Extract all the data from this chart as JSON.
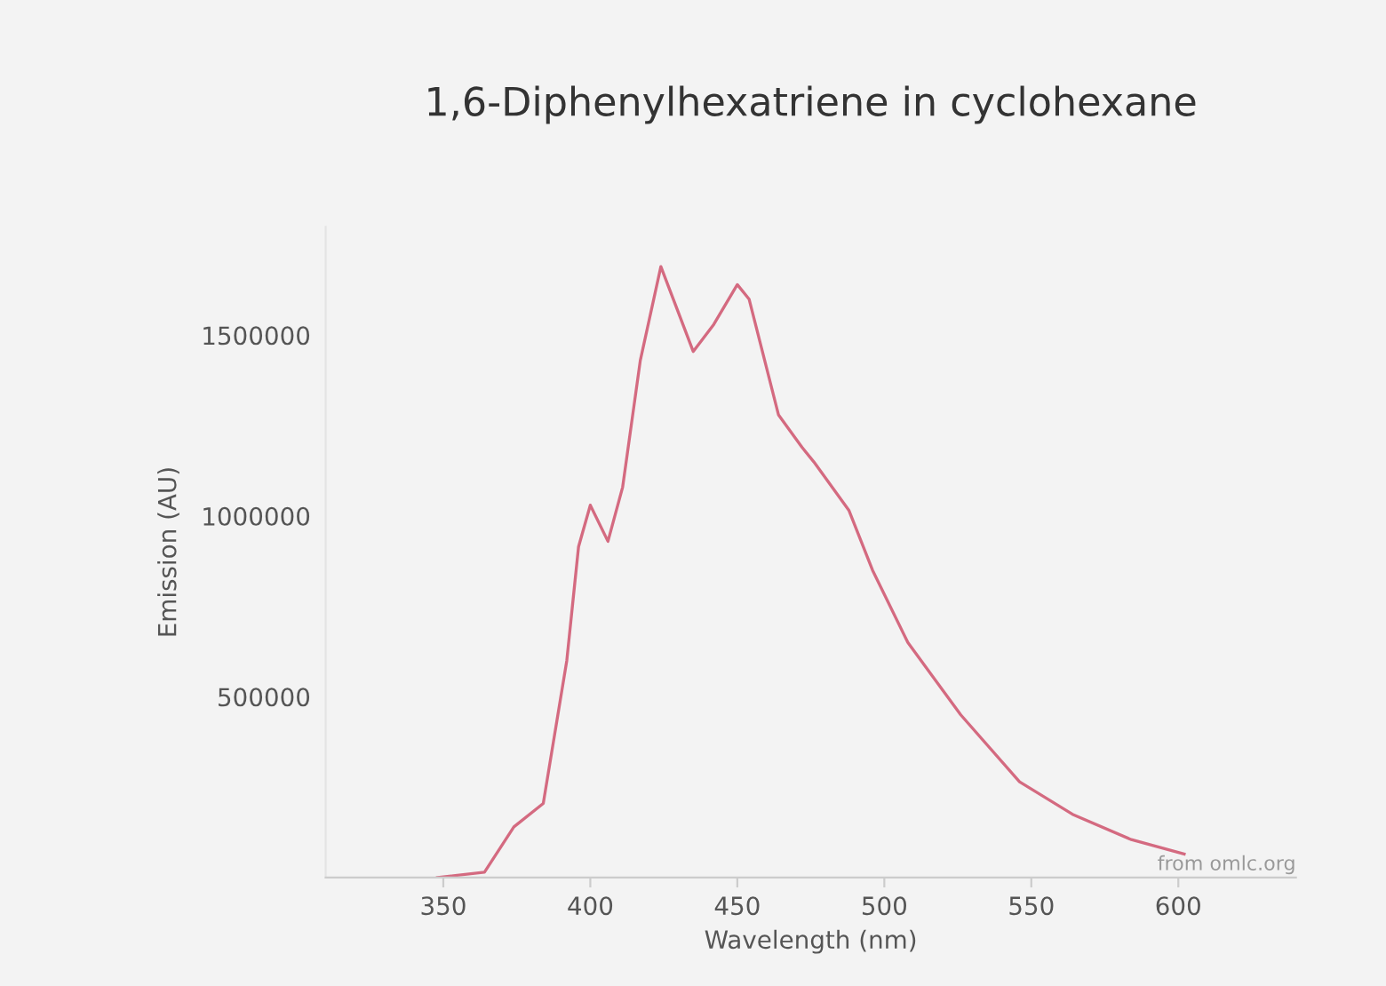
{
  "chart_data": {
    "type": "line",
    "title": "1,6-Diphenylhexatriene in cyclohexane",
    "xlabel": "Wavelength (nm)",
    "ylabel": "Emission (AU)",
    "annotations": [
      "from omlc.org"
    ],
    "xlim": [
      310,
      640
    ],
    "xticks": [
      350,
      400,
      450,
      500,
      550,
      600
    ],
    "ylim": [
      0,
      1800000
    ],
    "yticks": [
      500000,
      1000000,
      1500000
    ],
    "grid": false,
    "legend": false,
    "marker": "none",
    "line_style": "solid",
    "series": [
      {
        "color": "#d46a80",
        "x": [
          348,
          364,
          374,
          384,
          392,
          396,
          400,
          406,
          411,
          417,
          424,
          435,
          442,
          450,
          454,
          464,
          472,
          476,
          488,
          496,
          508,
          526,
          546,
          564,
          584,
          602
        ],
        "values": [
          0,
          15000,
          140000,
          205000,
          600000,
          915000,
          1030000,
          930000,
          1080000,
          1430000,
          1690000,
          1455000,
          1530000,
          1640000,
          1600000,
          1280000,
          1190000,
          1150000,
          1015000,
          850000,
          650000,
          450000,
          265000,
          175000,
          105000,
          65000
        ]
      }
    ]
  }
}
